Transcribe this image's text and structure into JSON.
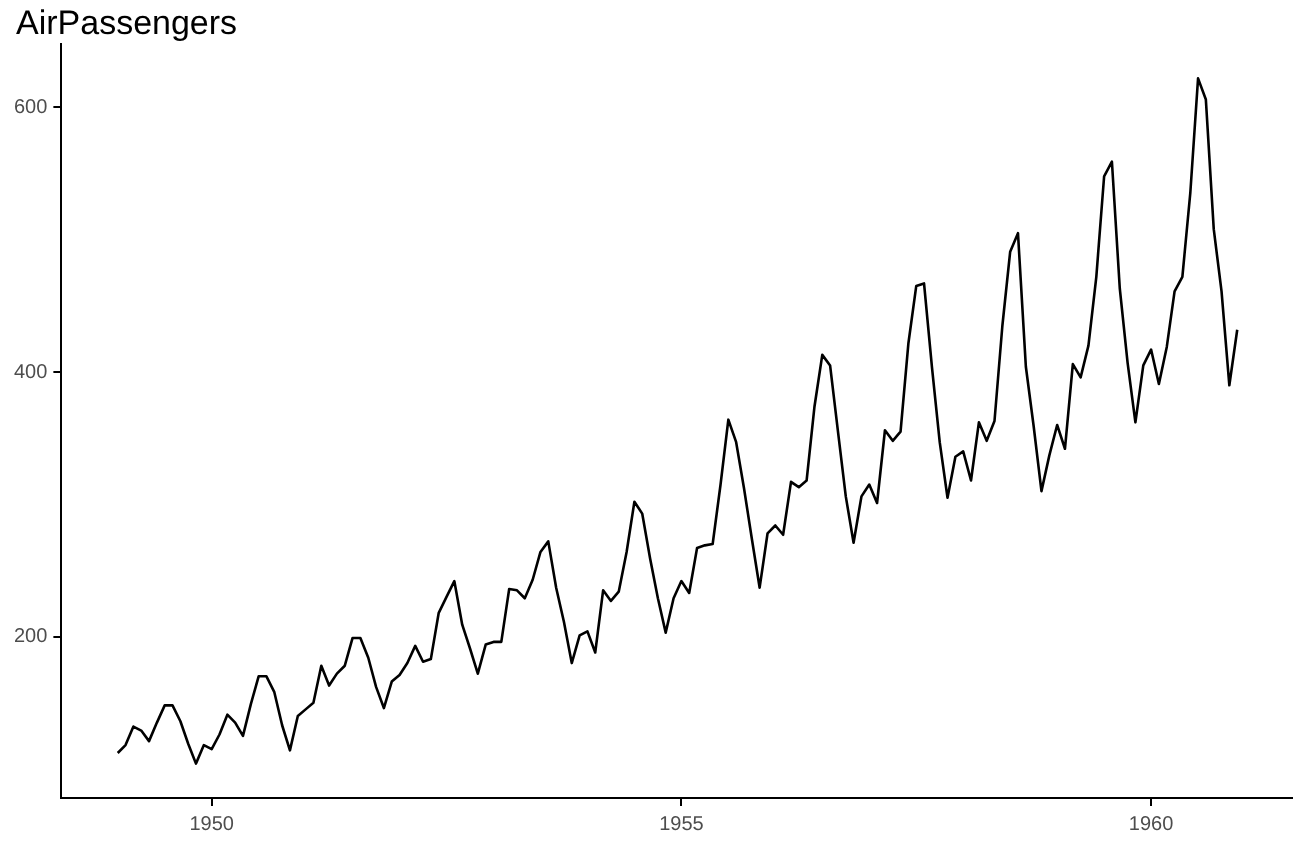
{
  "chart_data": {
    "type": "line",
    "title": "AirPassengers",
    "color": "#000000",
    "marker": "none",
    "grid": false,
    "legend": false,
    "x": [
      1949,
      1949.083,
      1949.167,
      1949.25,
      1949.333,
      1949.417,
      1949.5,
      1949.583,
      1949.667,
      1949.75,
      1949.833,
      1949.917,
      1950,
      1950.083,
      1950.167,
      1950.25,
      1950.333,
      1950.417,
      1950.5,
      1950.583,
      1950.667,
      1950.75,
      1950.833,
      1950.917,
      1951,
      1951.083,
      1951.167,
      1951.25,
      1951.333,
      1951.417,
      1951.5,
      1951.583,
      1951.667,
      1951.75,
      1951.833,
      1951.917,
      1952,
      1952.083,
      1952.167,
      1952.25,
      1952.333,
      1952.417,
      1952.5,
      1952.583,
      1952.667,
      1952.75,
      1952.833,
      1952.917,
      1953,
      1953.083,
      1953.167,
      1953.25,
      1953.333,
      1953.417,
      1953.5,
      1953.583,
      1953.667,
      1953.75,
      1953.833,
      1953.917,
      1954,
      1954.083,
      1954.167,
      1954.25,
      1954.333,
      1954.417,
      1954.5,
      1954.583,
      1954.667,
      1954.75,
      1954.833,
      1954.917,
      1955,
      1955.083,
      1955.167,
      1955.25,
      1955.333,
      1955.417,
      1955.5,
      1955.583,
      1955.667,
      1955.75,
      1955.833,
      1955.917,
      1956,
      1956.083,
      1956.167,
      1956.25,
      1956.333,
      1956.417,
      1956.5,
      1956.583,
      1956.667,
      1956.75,
      1956.833,
      1956.917,
      1957,
      1957.083,
      1957.167,
      1957.25,
      1957.333,
      1957.417,
      1957.5,
      1957.583,
      1957.667,
      1957.75,
      1957.833,
      1957.917,
      1958,
      1958.083,
      1958.167,
      1958.25,
      1958.333,
      1958.417,
      1958.5,
      1958.583,
      1958.667,
      1958.75,
      1958.833,
      1958.917,
      1959,
      1959.083,
      1959.167,
      1959.25,
      1959.333,
      1959.417,
      1959.5,
      1959.583,
      1959.667,
      1959.75,
      1959.833,
      1959.917,
      1960,
      1960.083,
      1960.167,
      1960.25,
      1960.333,
      1960.417,
      1960.5,
      1960.583,
      1960.667,
      1960.75,
      1960.833,
      1960.917
    ],
    "values": [
      112,
      118,
      132,
      129,
      121,
      135,
      148,
      148,
      136,
      119,
      104,
      118,
      115,
      126,
      141,
      135,
      125,
      149,
      170,
      170,
      158,
      133,
      114,
      140,
      145,
      150,
      178,
      163,
      172,
      178,
      199,
      199,
      184,
      162,
      146,
      166,
      171,
      180,
      193,
      181,
      183,
      218,
      230,
      242,
      209,
      191,
      172,
      194,
      196,
      196,
      236,
      235,
      229,
      243,
      264,
      272,
      237,
      211,
      180,
      201,
      204,
      188,
      235,
      227,
      234,
      264,
      302,
      293,
      259,
      229,
      203,
      229,
      242,
      233,
      267,
      269,
      270,
      315,
      364,
      347,
      312,
      274,
      237,
      278,
      284,
      277,
      317,
      313,
      318,
      374,
      413,
      405,
      355,
      306,
      271,
      306,
      315,
      301,
      356,
      348,
      355,
      422,
      465,
      467,
      404,
      347,
      305,
      336,
      340,
      318,
      362,
      348,
      363,
      435,
      491,
      505,
      404,
      359,
      310,
      337,
      360,
      342,
      406,
      396,
      420,
      472,
      548,
      559,
      463,
      407,
      362,
      405,
      417,
      391,
      419,
      461,
      472,
      535,
      622,
      606,
      508,
      461,
      390,
      432
    ],
    "xlim": [
      1948.4,
      1961.5
    ],
    "xticks": [
      1950,
      1955,
      1960
    ],
    "ylim": [
      78,
      648
    ],
    "yticks": [
      200,
      400,
      600
    ]
  }
}
